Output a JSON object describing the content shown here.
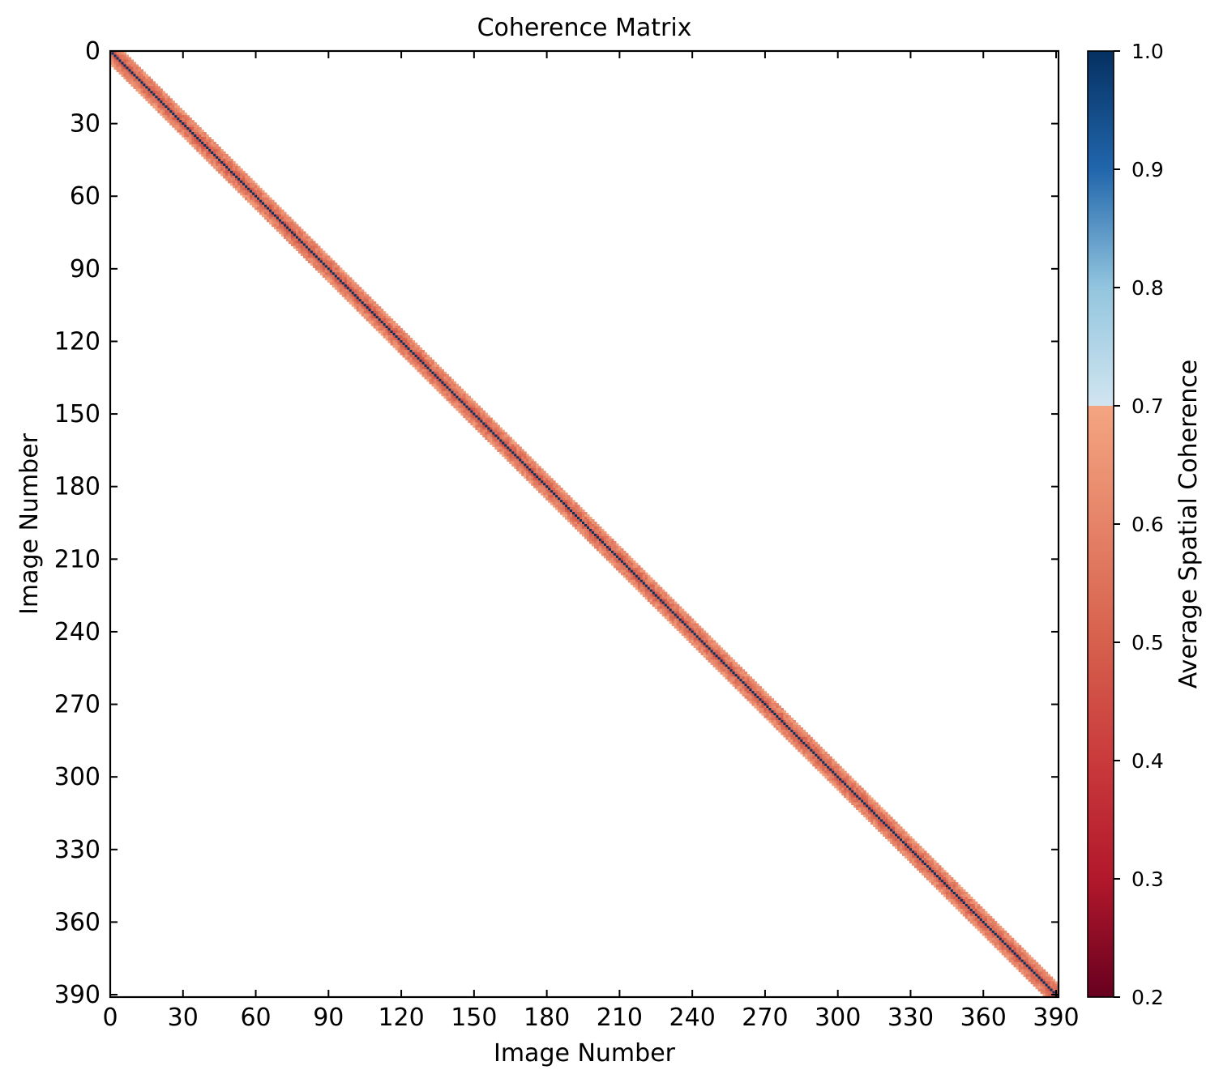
{
  "chart_data": {
    "type": "heatmap",
    "title": "Coherence Matrix",
    "xlabel": "Image Number",
    "ylabel": "Image Number",
    "n_images": 392,
    "xlim": [
      0,
      391
    ],
    "ylim": [
      391,
      0
    ],
    "x_ticks": [
      0,
      30,
      60,
      90,
      120,
      150,
      180,
      210,
      240,
      270,
      300,
      330,
      360,
      390
    ],
    "y_ticks": [
      0,
      30,
      60,
      90,
      120,
      150,
      180,
      210,
      240,
      270,
      300,
      330,
      360,
      390
    ],
    "band_halfwidth": 5,
    "diagonal_value": 1.0,
    "band_value_range": [
      0.45,
      0.69
    ],
    "masked_below": 0.7,
    "colorbar": {
      "label": "Average Spatial Coherence",
      "range": [
        0.2,
        1.0
      ],
      "ticks": [
        "0.2",
        "0.3",
        "0.4",
        "0.5",
        "0.6",
        "0.7",
        "0.8",
        "0.9",
        "1.0"
      ],
      "colormap": "RdBu",
      "color_stops": [
        [
          0.2,
          "#67001f"
        ],
        [
          0.3,
          "#b2182b"
        ],
        [
          0.4,
          "#c93a3c"
        ],
        [
          0.5,
          "#d6604d"
        ],
        [
          0.6,
          "#e58368"
        ],
        [
          0.7,
          "#f4a582"
        ],
        [
          0.7,
          "#d1e5f0"
        ],
        [
          0.8,
          "#92c5de"
        ],
        [
          0.9,
          "#2166ac"
        ],
        [
          1.0,
          "#053061"
        ]
      ]
    },
    "grid": false,
    "background": "#ffffff"
  }
}
